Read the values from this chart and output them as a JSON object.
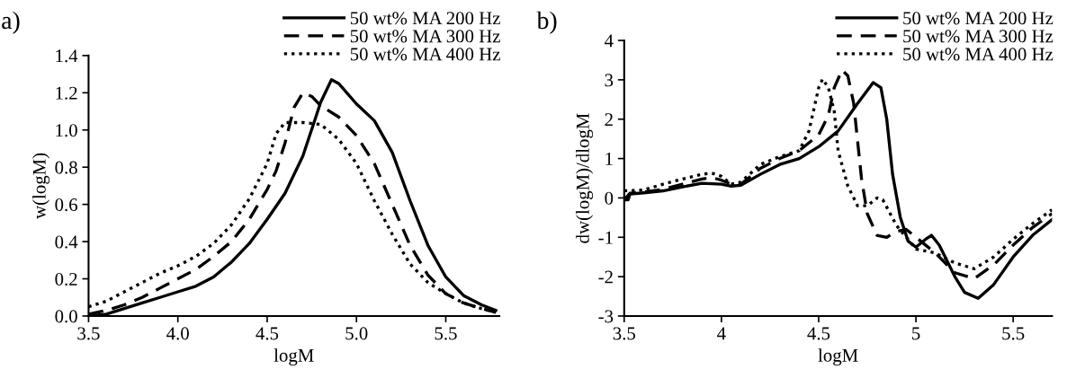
{
  "chart_data": [
    {
      "type": "line",
      "xlabel": "logM",
      "ylabel": "w(logM)",
      "annotations": [
        "a)"
      ],
      "legend": "top right",
      "grid": false,
      "marker": "none",
      "xlim": [
        3.5,
        5.8
      ],
      "xticks": [
        3.5,
        {
          "value": 4.0,
          "label": "4.0"
        },
        4.5,
        {
          "value": 5.0,
          "label": "5.0"
        },
        5.5
      ],
      "ylim": [
        0,
        1.4
      ],
      "yticks": [
        {
          "value": 0,
          "label": "0.0"
        },
        0.2,
        0.4,
        0.6,
        0.8,
        {
          "value": 1.0,
          "label": "1.0"
        },
        1.2,
        1.4
      ],
      "series": [
        {
          "name": "50 wt% MA 200 Hz",
          "color": "#000000",
          "line_style": "solid",
          "x": [
            3.5,
            3.6,
            3.7,
            3.8,
            3.9,
            4.0,
            4.1,
            4.2,
            4.3,
            4.4,
            4.5,
            4.6,
            4.7,
            4.8,
            4.86,
            4.9,
            5.0,
            5.1,
            5.2,
            5.3,
            5.4,
            5.5,
            5.6,
            5.7,
            5.78
          ],
          "values": [
            0.0,
            0.01,
            0.04,
            0.07,
            0.1,
            0.13,
            0.16,
            0.21,
            0.29,
            0.39,
            0.52,
            0.66,
            0.86,
            1.15,
            1.27,
            1.25,
            1.14,
            1.05,
            0.88,
            0.62,
            0.38,
            0.21,
            0.11,
            0.06,
            0.03
          ]
        },
        {
          "name": "50 wt% MA 300 Hz",
          "color": "#000000",
          "line_style": "dashed",
          "x": [
            3.5,
            3.6,
            3.7,
            3.8,
            3.9,
            4.0,
            4.1,
            4.2,
            4.3,
            4.4,
            4.5,
            4.55,
            4.6,
            4.65,
            4.7,
            4.75,
            4.8,
            4.9,
            5.0,
            5.1,
            5.2,
            5.3,
            5.4,
            5.5,
            5.6,
            5.7,
            5.78
          ],
          "values": [
            0.01,
            0.03,
            0.06,
            0.1,
            0.15,
            0.2,
            0.25,
            0.32,
            0.4,
            0.52,
            0.68,
            0.78,
            0.93,
            1.12,
            1.2,
            1.18,
            1.13,
            1.07,
            0.97,
            0.82,
            0.6,
            0.38,
            0.22,
            0.12,
            0.07,
            0.04,
            0.02
          ]
        },
        {
          "name": "50 wt% MA 400 Hz",
          "color": "#000000",
          "line_style": "dotted",
          "x": [
            3.5,
            3.6,
            3.7,
            3.8,
            3.9,
            4.0,
            4.1,
            4.2,
            4.3,
            4.4,
            4.5,
            4.55,
            4.6,
            4.7,
            4.8,
            4.9,
            5.0,
            5.1,
            5.2,
            5.3,
            5.4,
            5.5,
            5.6,
            5.7,
            5.78
          ],
          "values": [
            0.05,
            0.08,
            0.13,
            0.18,
            0.23,
            0.27,
            0.32,
            0.39,
            0.49,
            0.63,
            0.82,
            0.98,
            1.04,
            1.04,
            1.03,
            0.95,
            0.82,
            0.62,
            0.44,
            0.28,
            0.18,
            0.12,
            0.07,
            0.04,
            0.02
          ]
        }
      ]
    },
    {
      "type": "line",
      "xlabel": "logM",
      "ylabel": "dw(logM)/dlogM",
      "annotations": [
        "b)"
      ],
      "legend": "top right",
      "grid": false,
      "marker": "none",
      "xlim": [
        3.5,
        5.7
      ],
      "xticks": [
        3.5,
        4,
        4.5,
        5,
        5.5
      ],
      "ylim": [
        -3,
        4
      ],
      "yticks": [
        -3,
        -2,
        -1,
        0,
        1,
        2,
        3,
        4
      ],
      "series": [
        {
          "name": "50 wt% MA 200 Hz",
          "color": "#000000",
          "line_style": "solid",
          "x": [
            3.5,
            3.52,
            3.53,
            3.6,
            3.7,
            3.8,
            3.9,
            4.0,
            4.05,
            4.1,
            4.2,
            4.3,
            4.4,
            4.5,
            4.6,
            4.7,
            4.78,
            4.82,
            4.85,
            4.88,
            4.92,
            4.96,
            5.0,
            5.05,
            5.08,
            5.12,
            5.2,
            5.25,
            5.32,
            5.4,
            5.5,
            5.6,
            5.7
          ],
          "values": [
            -0.05,
            -0.05,
            0.1,
            0.13,
            0.18,
            0.28,
            0.37,
            0.35,
            0.3,
            0.32,
            0.6,
            0.85,
            1.0,
            1.3,
            1.7,
            2.4,
            2.93,
            2.8,
            2.0,
            0.6,
            -0.5,
            -1.1,
            -1.25,
            -1.05,
            -0.95,
            -1.2,
            -2.0,
            -2.4,
            -2.55,
            -2.2,
            -1.5,
            -0.95,
            -0.55
          ]
        },
        {
          "name": "50 wt% MA 300 Hz",
          "color": "#000000",
          "line_style": "dashed",
          "x": [
            3.5,
            3.53,
            3.6,
            3.7,
            3.8,
            3.9,
            3.95,
            4.0,
            4.05,
            4.1,
            4.2,
            4.3,
            4.4,
            4.5,
            4.55,
            4.58,
            4.62,
            4.65,
            4.68,
            4.72,
            4.75,
            4.8,
            4.85,
            4.9,
            4.95,
            5.0,
            5.1,
            5.2,
            5.3,
            5.4,
            5.5,
            5.6,
            5.7
          ],
          "values": [
            -0.05,
            0.12,
            0.15,
            0.22,
            0.35,
            0.48,
            0.52,
            0.45,
            0.35,
            0.35,
            0.75,
            1.0,
            1.2,
            1.6,
            2.1,
            2.8,
            3.25,
            3.1,
            2.4,
            0.5,
            -0.4,
            -0.95,
            -1.0,
            -0.85,
            -0.8,
            -1.0,
            -1.4,
            -1.9,
            -2.05,
            -1.7,
            -1.2,
            -0.75,
            -0.4
          ]
        },
        {
          "name": "50 wt% MA 400 Hz",
          "color": "#000000",
          "line_style": "dotted",
          "x": [
            3.5,
            3.6,
            3.7,
            3.8,
            3.9,
            3.95,
            4.0,
            4.05,
            4.1,
            4.2,
            4.3,
            4.4,
            4.45,
            4.5,
            4.52,
            4.55,
            4.58,
            4.6,
            4.65,
            4.7,
            4.75,
            4.8,
            4.83,
            4.9,
            5.0,
            5.1,
            5.2,
            5.3,
            5.4,
            5.5,
            5.6,
            5.7
          ],
          "values": [
            0.18,
            0.2,
            0.35,
            0.48,
            0.6,
            0.63,
            0.55,
            0.35,
            0.4,
            0.85,
            1.05,
            1.2,
            1.7,
            2.8,
            3.02,
            2.8,
            2.2,
            1.2,
            0.3,
            -0.2,
            -0.2,
            0.0,
            -0.05,
            -0.7,
            -1.3,
            -1.4,
            -1.65,
            -1.8,
            -1.5,
            -1.05,
            -0.65,
            -0.3
          ]
        }
      ]
    }
  ]
}
